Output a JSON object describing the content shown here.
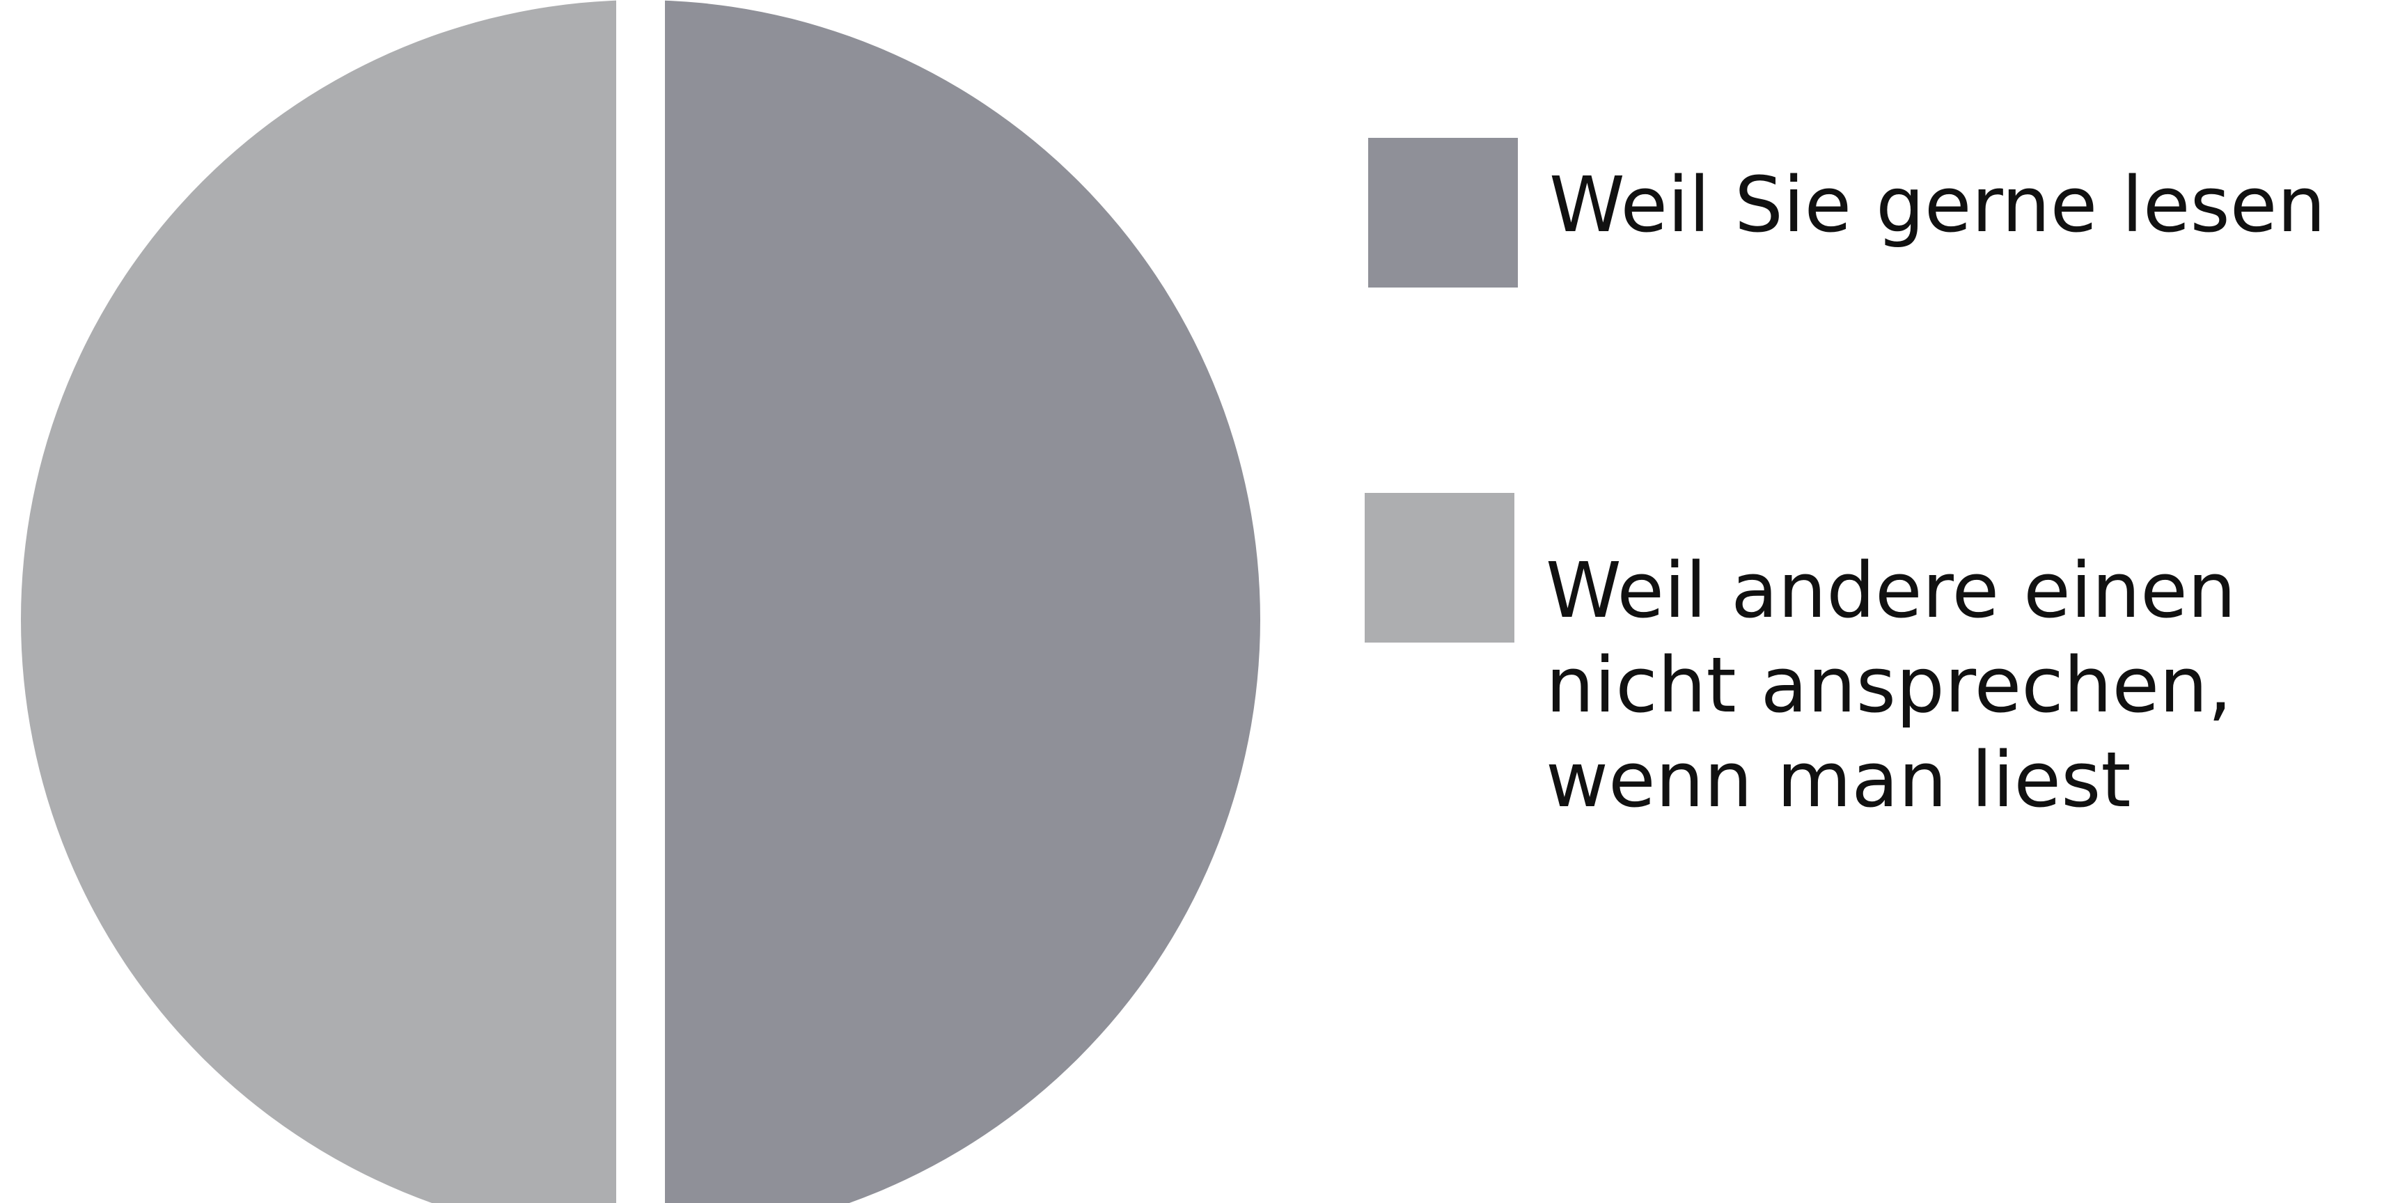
{
  "chart_data": {
    "type": "pie",
    "title": "",
    "slices": [
      {
        "label": "Weil Sie gerne lesen",
        "value": 50,
        "color": "#8f9098"
      },
      {
        "label": "Weil andere einen\nnicht ansprechen,\nwenn man liest",
        "value": 50,
        "color": "#adaeb0"
      }
    ],
    "legend": {
      "placement": "right",
      "entries": [
        "Weil Sie gerne lesen",
        "Weil andere einen\nnicht ansprechen,\nwenn man liest"
      ]
    }
  }
}
